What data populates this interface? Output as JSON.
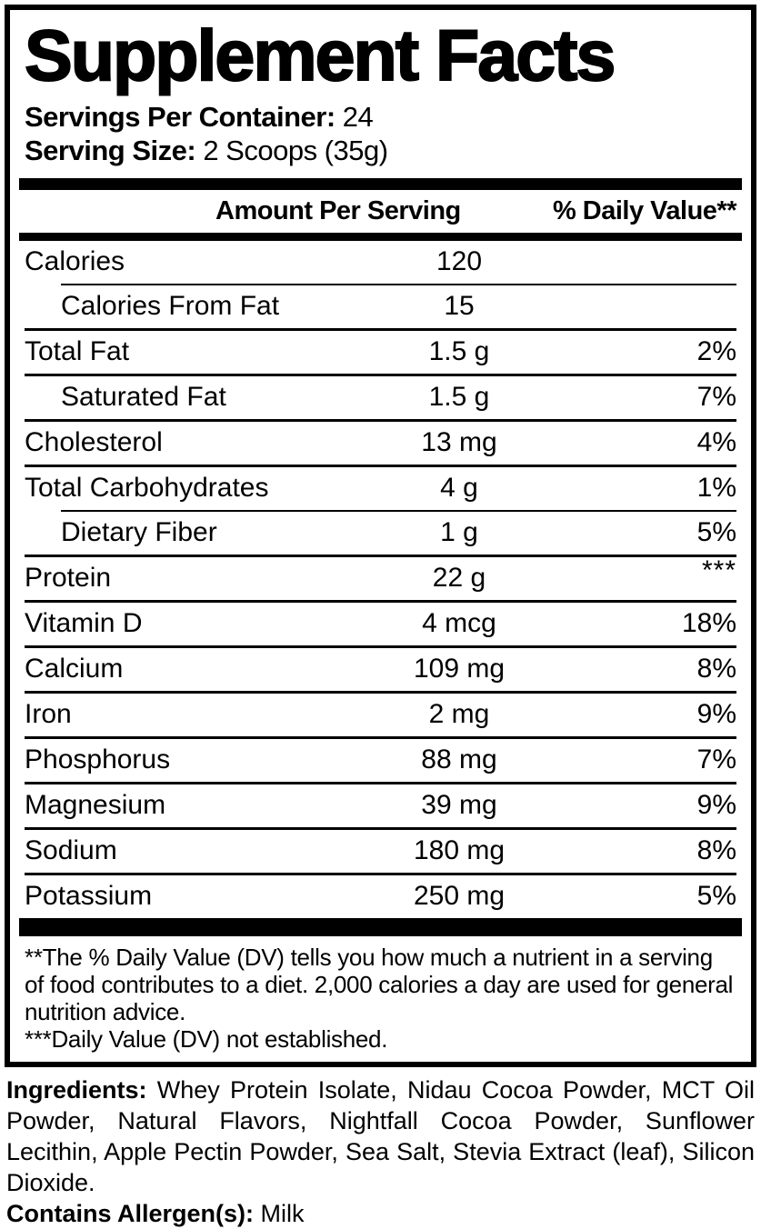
{
  "colors": {
    "text": "#000000",
    "background": "#ffffff"
  },
  "panel": {
    "title": "Supplement Facts",
    "servings_per_container": {
      "label": "Servings Per Container:",
      "value": "24"
    },
    "serving_size": {
      "label": "Serving Size:",
      "value": "2 Scoops (35g)"
    },
    "columns": {
      "amount": "Amount Per Serving",
      "daily_value": "% Daily Value**"
    },
    "rows": [
      {
        "name": "Calories",
        "amount": "120",
        "dv": "",
        "indent": false,
        "separator": "none"
      },
      {
        "name": "Calories From Fat",
        "amount": "15",
        "dv": "",
        "indent": true,
        "separator": "indented"
      },
      {
        "name": "Total Fat",
        "amount": "1.5 g",
        "dv": "2%",
        "indent": false,
        "separator": "full"
      },
      {
        "name": "Saturated Fat",
        "amount": "1.5 g",
        "dv": "7%",
        "indent": true,
        "separator": "full"
      },
      {
        "name": "Cholesterol",
        "amount": "13 mg",
        "dv": "4%",
        "indent": false,
        "separator": "full"
      },
      {
        "name": "Total Carbohydrates",
        "amount": "4 g",
        "dv": "1%",
        "indent": false,
        "separator": "full"
      },
      {
        "name": "Dietary Fiber",
        "amount": "1 g",
        "dv": "5%",
        "indent": true,
        "separator": "indented"
      },
      {
        "name": "Protein",
        "amount": "22 g",
        "dv": "***",
        "indent": false,
        "separator": "full",
        "dv_raised": true
      },
      {
        "name": "Vitamin D",
        "amount": "4 mcg",
        "dv": "18%",
        "indent": false,
        "separator": "full"
      },
      {
        "name": "Calcium",
        "amount": "109 mg",
        "dv": "8%",
        "indent": false,
        "separator": "full"
      },
      {
        "name": "Iron",
        "amount": "2 mg",
        "dv": "9%",
        "indent": false,
        "separator": "full"
      },
      {
        "name": "Phosphorus",
        "amount": "88 mg",
        "dv": "7%",
        "indent": false,
        "separator": "full"
      },
      {
        "name": "Magnesium",
        "amount": "39 mg",
        "dv": "9%",
        "indent": false,
        "separator": "full"
      },
      {
        "name": "Sodium",
        "amount": "180 mg",
        "dv": "8%",
        "indent": false,
        "separator": "full"
      },
      {
        "name": "Potassium",
        "amount": "250 mg",
        "dv": "5%",
        "indent": false,
        "separator": "full"
      }
    ],
    "footnotes": [
      "**The % Daily Value (DV) tells you how much a nutrient in a serving of food contributes to a diet. 2,000 calories a day are used for general nutrition advice.",
      "***Daily Value (DV) not established."
    ]
  },
  "ingredients": {
    "label": "Ingredients:",
    "text": "Whey Protein Isolate, Nidau Cocoa Powder, MCT Oil Powder, Natural Flavors, Nightfall Cocoa Powder, Sunflower Lecithin, Apple Pectin Powder, Sea Salt, Stevia Extract (leaf), Silicon Dioxide.",
    "allergen_label": "Contains Allergen(s):",
    "allergen_value": "Milk"
  }
}
